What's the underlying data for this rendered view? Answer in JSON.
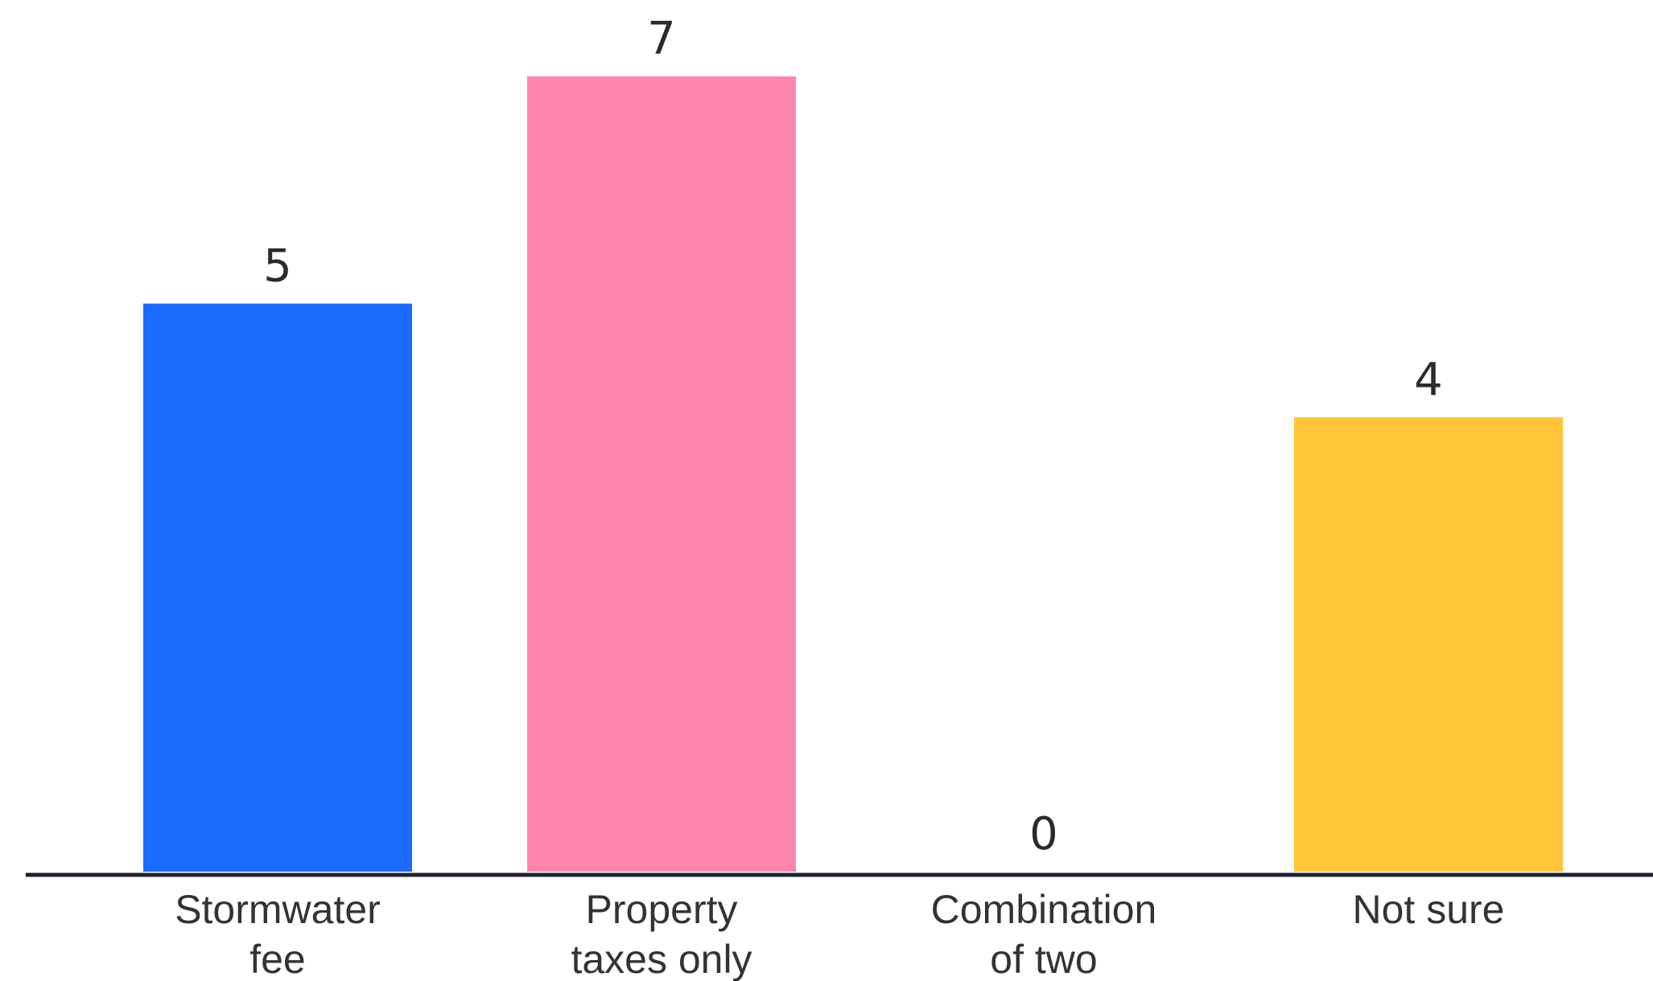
{
  "chart_data": {
    "type": "bar",
    "title": "",
    "xlabel": "",
    "ylabel": "",
    "categories": [
      [
        "Stormwater",
        "fee"
      ],
      [
        "Property",
        "taxes only"
      ],
      [
        "Combination",
        "of two"
      ],
      [
        "Not sure"
      ]
    ],
    "values": [
      5,
      7,
      0,
      4
    ],
    "colors": [
      "#1a6aff",
      "#ff84ab",
      "#ffc43a",
      "#ffc43a"
    ],
    "bar_color_by_category": {
      "Stormwater fee": "#1a6aff",
      "Property taxes only": "#ff84ab",
      "Combination of two": "#ffc43a",
      "Not sure": "#ffc43a"
    },
    "ylim": [
      0,
      7
    ],
    "grid": false,
    "legend": "none",
    "show_value_labels": true,
    "axis_color": "#1c2333"
  }
}
